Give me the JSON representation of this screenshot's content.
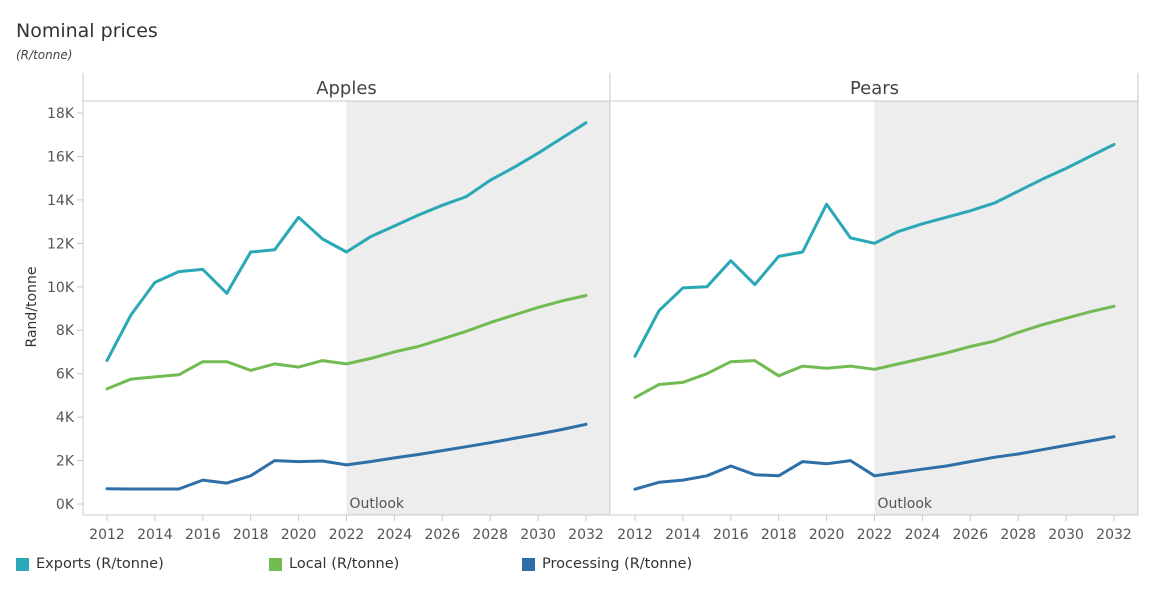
{
  "header": {
    "title": "Nominal prices",
    "subtitle": "(R/tonne)"
  },
  "chart_data": {
    "type": "line",
    "ylabel": "Rand/tonne",
    "ylim": [
      0,
      18000
    ],
    "yticks": [
      0,
      2000,
      4000,
      6000,
      8000,
      10000,
      12000,
      14000,
      16000,
      18000
    ],
    "ytick_labels": [
      "0K",
      "2K",
      "4K",
      "6K",
      "8K",
      "10K",
      "12K",
      "14K",
      "16K",
      "18K"
    ],
    "xlim": [
      2012,
      2032
    ],
    "xticks": [
      2012,
      2014,
      2016,
      2018,
      2020,
      2022,
      2024,
      2026,
      2028,
      2030,
      2032
    ],
    "xtick_labels": [
      "2012",
      "2014",
      "2016",
      "2018",
      "2020",
      "2022",
      "2024",
      "2026",
      "2028",
      "2030",
      "2032"
    ],
    "outlook": {
      "start": 2022,
      "label": "Outlook"
    },
    "colors": {
      "Exports": "#2aa8b5",
      "Local": "#72bb53",
      "Processing": "#2e6fa8"
    },
    "x": [
      2012,
      2013,
      2014,
      2015,
      2016,
      2017,
      2018,
      2019,
      2020,
      2021,
      2022,
      2023,
      2024,
      2025,
      2026,
      2027,
      2028,
      2029,
      2030,
      2031,
      2032
    ],
    "panels": [
      {
        "title": "Apples",
        "series": [
          {
            "key": "Exports",
            "name": "Exports (R/tonne)",
            "values": [
              6600,
              8700,
              10200,
              10700,
              10800,
              9700,
              11600,
              11700,
              13200,
              12200,
              11600,
              12300,
              12800,
              13300,
              13750,
              14150,
              14900,
              15500,
              16150,
              16850,
              17550
            ]
          },
          {
            "key": "Local",
            "name": "Local (R/tonne)",
            "values": [
              5300,
              5750,
              5850,
              5950,
              6550,
              6550,
              6150,
              6450,
              6300,
              6600,
              6450,
              6700,
              7000,
              7250,
              7600,
              7950,
              8350,
              8700,
              9050,
              9350,
              9600
            ]
          },
          {
            "key": "Processing",
            "name": "Processing (R/tonne)",
            "values": [
              700,
              690,
              690,
              690,
              1100,
              960,
              1300,
              2000,
              1950,
              1980,
              1800,
              1950,
              2120,
              2280,
              2460,
              2640,
              2820,
              3020,
              3220,
              3430,
              3670
            ]
          }
        ]
      },
      {
        "title": "Pears",
        "series": [
          {
            "key": "Exports",
            "name": "Exports (R/tonne)",
            "values": [
              6800,
              8900,
              9950,
              10000,
              11200,
              10100,
              11400,
              11600,
              13800,
              12250,
              12000,
              12550,
              12900,
              13200,
              13500,
              13850,
              14400,
              14950,
              15450,
              16000,
              16550
            ]
          },
          {
            "key": "Local",
            "name": "Local (R/tonne)",
            "values": [
              4900,
              5500,
              5600,
              6000,
              6550,
              6600,
              5900,
              6350,
              6250,
              6350,
              6200,
              6450,
              6700,
              6950,
              7250,
              7500,
              7900,
              8250,
              8550,
              8850,
              9100
            ]
          },
          {
            "key": "Processing",
            "name": "Processing (R/tonne)",
            "values": [
              680,
              1000,
              1100,
              1300,
              1750,
              1350,
              1300,
              1950,
              1850,
              2000,
              1300,
              1450,
              1600,
              1750,
              1950,
              2150,
              2300,
              2500,
              2700,
              2900,
              3100
            ]
          }
        ]
      }
    ]
  },
  "legend": [
    {
      "label": "Exports (R/tonne)",
      "color": "#2aa8b5"
    },
    {
      "label": "Local (R/tonne)",
      "color": "#72bb53"
    },
    {
      "label": "Processing (R/tonne)",
      "color": "#2e6fa8"
    }
  ]
}
